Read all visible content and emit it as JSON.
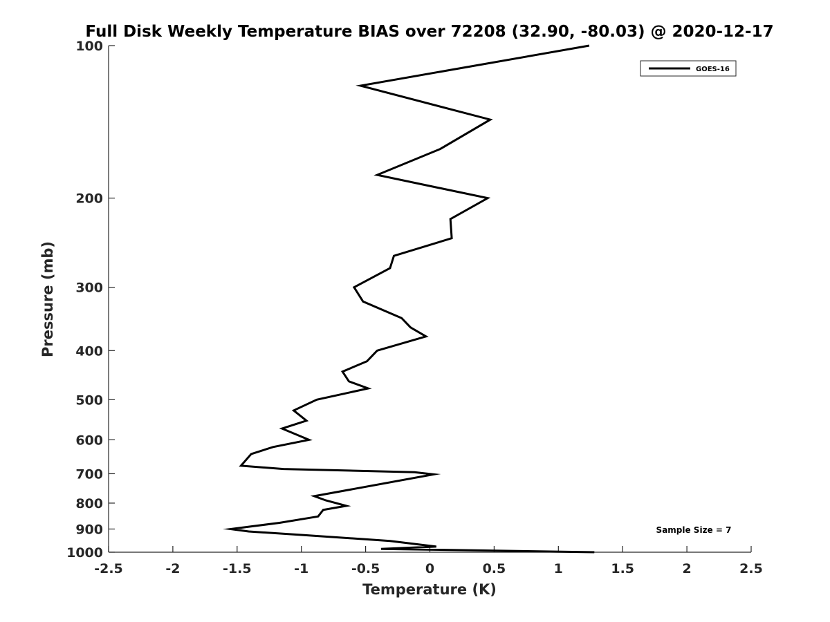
{
  "chart_data": {
    "type": "line",
    "title": "Full Disk Weekly Temperature BIAS over 72208 (32.90, -80.03) @ 2020-12-17",
    "xlabel": "Temperature (K)",
    "ylabel": "Pressure (mb)",
    "xlim": [
      -2.5,
      2.5
    ],
    "ylim": [
      100,
      1000
    ],
    "yscale": "log",
    "yaxis_reversed": true,
    "x_ticks": [
      -2.5,
      -2,
      -1.5,
      -1,
      -0.5,
      0,
      0.5,
      1,
      1.5,
      2,
      2.5
    ],
    "x_tick_labels": [
      "-2.5",
      "-2",
      "-1.5",
      "-1",
      "-0.5",
      "0",
      "0.5",
      "1",
      "1.5",
      "2",
      "2.5"
    ],
    "y_ticks": [
      100,
      200,
      300,
      400,
      500,
      600,
      700,
      800,
      900,
      1000
    ],
    "y_tick_labels": [
      "100",
      "200",
      "300",
      "400",
      "500",
      "600",
      "700",
      "800",
      "900",
      "1000"
    ],
    "grid": false,
    "legend_position": "top-right",
    "annotation": "Sample Size = 7",
    "series": [
      {
        "name": "GOES-16",
        "color": "#000000",
        "points": [
          {
            "x": 1.24,
            "y": 100
          },
          {
            "x": -0.54,
            "y": 120
          },
          {
            "x": 0.47,
            "y": 140
          },
          {
            "x": 0.08,
            "y": 160
          },
          {
            "x": -0.41,
            "y": 180
          },
          {
            "x": 0.45,
            "y": 200
          },
          {
            "x": 0.16,
            "y": 220
          },
          {
            "x": 0.17,
            "y": 240
          },
          {
            "x": -0.28,
            "y": 260
          },
          {
            "x": -0.31,
            "y": 275
          },
          {
            "x": -0.59,
            "y": 300
          },
          {
            "x": -0.52,
            "y": 320
          },
          {
            "x": -0.22,
            "y": 345
          },
          {
            "x": -0.15,
            "y": 360
          },
          {
            "x": -0.03,
            "y": 375
          },
          {
            "x": -0.41,
            "y": 400
          },
          {
            "x": -0.49,
            "y": 420
          },
          {
            "x": -0.68,
            "y": 440
          },
          {
            "x": -0.63,
            "y": 460
          },
          {
            "x": -0.48,
            "y": 475
          },
          {
            "x": -0.88,
            "y": 500
          },
          {
            "x": -1.06,
            "y": 525
          },
          {
            "x": -0.96,
            "y": 550
          },
          {
            "x": -1.15,
            "y": 570
          },
          {
            "x": -0.94,
            "y": 600
          },
          {
            "x": -1.22,
            "y": 620
          },
          {
            "x": -1.39,
            "y": 640
          },
          {
            "x": -1.47,
            "y": 675
          },
          {
            "x": -1.14,
            "y": 685
          },
          {
            "x": -0.12,
            "y": 695
          },
          {
            "x": 0.03,
            "y": 702
          },
          {
            "x": -0.9,
            "y": 775
          },
          {
            "x": -0.81,
            "y": 790
          },
          {
            "x": -0.65,
            "y": 810
          },
          {
            "x": -0.83,
            "y": 825
          },
          {
            "x": -0.87,
            "y": 850
          },
          {
            "x": -1.17,
            "y": 875
          },
          {
            "x": -1.55,
            "y": 900
          },
          {
            "x": -1.41,
            "y": 910
          },
          {
            "x": -0.98,
            "y": 925
          },
          {
            "x": -0.31,
            "y": 950
          },
          {
            "x": 0.05,
            "y": 975
          },
          {
            "x": -0.38,
            "y": 985
          },
          {
            "x": 1.28,
            "y": 1000
          }
        ]
      }
    ]
  }
}
